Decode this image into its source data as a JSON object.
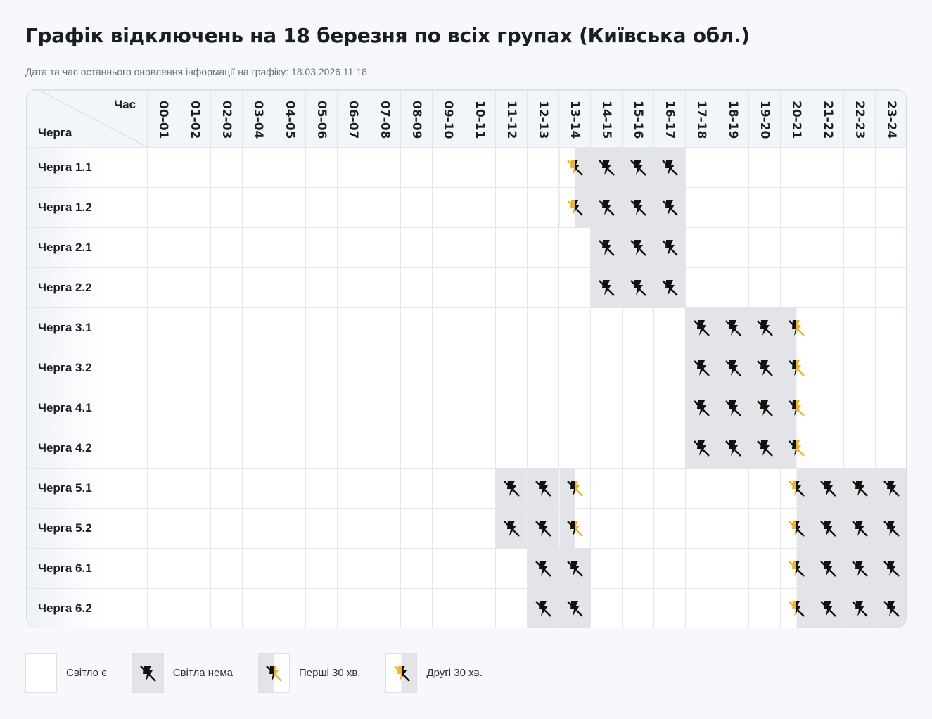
{
  "title": "Графік відключень на 18 березня по всіх групах (Київська обл.)",
  "updated": "Дата та час останнього оновлення інформації на графіку: 18.03.2026 11:18",
  "corner": {
    "hour_label": "Час",
    "group_label": "Черга"
  },
  "hours": [
    "00-01",
    "01-02",
    "02-03",
    "03-04",
    "04-05",
    "05-06",
    "06-07",
    "07-08",
    "08-09",
    "09-10",
    "10-11",
    "11-12",
    "12-13",
    "13-14",
    "14-15",
    "15-16",
    "16-17",
    "17-18",
    "18-19",
    "19-20",
    "20-21",
    "21-22",
    "22-23",
    "23-24"
  ],
  "colors": {
    "off": "#e3e4e7",
    "icon_off": "#111111",
    "icon_on": "#f0b323"
  },
  "state_codes": {
    "0": "on",
    "1": "off",
    "f": "first",
    "s": "second"
  },
  "groups": [
    {
      "label": "Черга 1.1",
      "states": "0000000000000s1110000000"
    },
    {
      "label": "Черга 1.2",
      "states": "0000000000000s1110000000"
    },
    {
      "label": "Черга 2.1",
      "states": "000000000000001110000000"
    },
    {
      "label": "Черга 2.2",
      "states": "000000000000001110000000"
    },
    {
      "label": "Черга 3.1",
      "states": "00000000000000000111f000"
    },
    {
      "label": "Черга 3.2",
      "states": "00000000000000000111f000"
    },
    {
      "label": "Черга 4.1",
      "states": "00000000000000000111f000"
    },
    {
      "label": "Черга 4.2",
      "states": "00000000000000000111f000"
    },
    {
      "label": "Черга 5.1",
      "states": "0000000000011f000000s111"
    },
    {
      "label": "Черга 5.2",
      "states": "0000000000011f000000s111"
    },
    {
      "label": "Черга 6.1",
      "states": "00000000000011000000s111"
    },
    {
      "label": "Черга 6.2",
      "states": "00000000000011000000s111"
    }
  ],
  "legend": [
    {
      "state": "on",
      "label": "Світло є",
      "icon": "none"
    },
    {
      "state": "off",
      "label": "Світла нема",
      "icon": "no-power-icon"
    },
    {
      "state": "first",
      "label": "Перші 30 хв.",
      "icon": "no-power-half-icon"
    },
    {
      "state": "second",
      "label": "Другі 30 хв.",
      "icon": "no-power-half-icon"
    }
  ]
}
